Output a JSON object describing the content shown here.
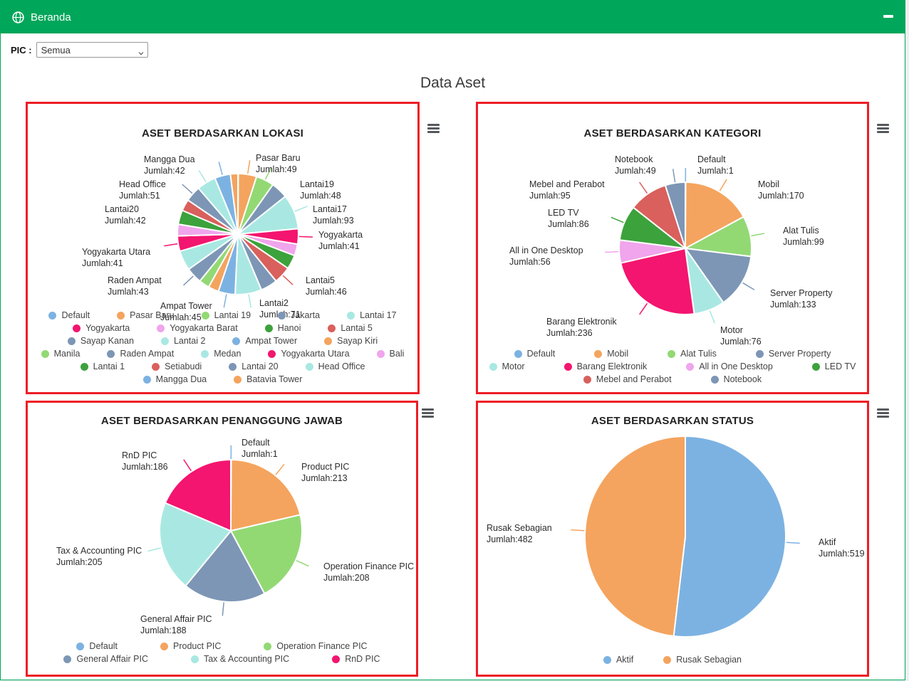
{
  "window": {
    "title": "Beranda"
  },
  "filter": {
    "label": "PIC :",
    "selected": "Semua"
  },
  "page_title": "Data Aset",
  "colors": {
    "header_green": "#00a65a",
    "panel_border_red": "#ee1d25",
    "menu_icon_gray": "#55595e",
    "palette": [
      "#7cb2e2",
      "#f4a45e",
      "#92d974",
      "#7d96b5",
      "#a9e8e2",
      "#f3156f",
      "#f0a5ec",
      "#3ca23c",
      "#d9605c"
    ]
  },
  "chart_data": [
    {
      "type": "pie",
      "title": "ASET BERDASARKAN LOKASI",
      "legend_position": "bottom",
      "series": [
        {
          "label": "Default",
          "value": 1,
          "color": "#7cb2e2"
        },
        {
          "label": "Pasar Baru",
          "value": 49,
          "color": "#f4a45e"
        },
        {
          "label": "Lantai 19",
          "value": 48,
          "color": "#92d974"
        },
        {
          "label": "Jakarta",
          "value": 45,
          "color": "#7d96b5"
        },
        {
          "label": "Lantai 17",
          "value": 93,
          "color": "#a9e8e2"
        },
        {
          "label": "Yogyakarta",
          "value": 41,
          "color": "#f3156f"
        },
        {
          "label": "Yogyakarta Barat",
          "value": 31,
          "color": "#f0a5ec"
        },
        {
          "label": "Hanoi",
          "value": 38,
          "color": "#3ca23c"
        },
        {
          "label": "Lantai 5",
          "value": 46,
          "color": "#d9605c"
        },
        {
          "label": "Sayap Kanan",
          "value": 45,
          "color": "#7d96b5"
        },
        {
          "label": "Lantai 2",
          "value": 71,
          "color": "#a9e8e2"
        },
        {
          "label": "Ampat Tower",
          "value": 45,
          "color": "#7cb2e2"
        },
        {
          "label": "Sayap Kiri",
          "value": 28,
          "color": "#f4a45e"
        },
        {
          "label": "Manila",
          "value": 28,
          "color": "#92d974"
        },
        {
          "label": "Raden Ampat",
          "value": 43,
          "color": "#7d96b5"
        },
        {
          "label": "Medan",
          "value": 53,
          "color": "#a9e8e2"
        },
        {
          "label": "Yogyakarta Utara",
          "value": 41,
          "color": "#f3156f"
        },
        {
          "label": "Bali",
          "value": 31,
          "color": "#f0a5ec"
        },
        {
          "label": "Lantai 1",
          "value": 38,
          "color": "#3ca23c"
        },
        {
          "label": "Setiabudi",
          "value": 31,
          "color": "#d9605c"
        },
        {
          "label": "Lantai 20",
          "value": 42,
          "color": "#7d96b5"
        },
        {
          "label": "Head Office",
          "value": 51,
          "color": "#a9e8e2"
        },
        {
          "label": "Mangga Dua",
          "value": 42,
          "color": "#7cb2e2"
        },
        {
          "label": "Batavia Tower",
          "value": 20,
          "color": "#f4a45e"
        }
      ],
      "callouts": [
        {
          "si": 22,
          "name": "Mangga Dua",
          "jumlah": "Jumlah:42"
        },
        {
          "si": 1,
          "name": "Pasar Baru",
          "jumlah": "Jumlah:49"
        },
        {
          "si": 21,
          "name": "Head Office",
          "jumlah": "Jumlah:51"
        },
        {
          "si": 2,
          "name": "Lantai19",
          "jumlah": "Jumlah:48"
        },
        {
          "si": 20,
          "name": "Lantai20",
          "jumlah": "Jumlah:42"
        },
        {
          "si": 4,
          "name": "Lantai17",
          "jumlah": "Jumlah:93"
        },
        {
          "si": 5,
          "name": "Yogyakarta",
          "jumlah": "Jumlah:41"
        },
        {
          "si": 16,
          "name": "Yogyakarta Utara",
          "jumlah": "Jumlah:41"
        },
        {
          "si": 8,
          "name": "Lantai5",
          "jumlah": "Jumlah:46"
        },
        {
          "si": 14,
          "name": "Raden Ampat",
          "jumlah": "Jumlah:43"
        },
        {
          "si": 11,
          "name": "Ampat Tower",
          "jumlah": "Jumlah:45"
        },
        {
          "si": 10,
          "name": "Lantai2",
          "jumlah": "Jumlah:71"
        }
      ]
    },
    {
      "type": "pie",
      "title": "ASET BERDASARKAN KATEGORI",
      "legend_position": "bottom",
      "series": [
        {
          "label": "Default",
          "value": 1,
          "color": "#7cb2e2"
        },
        {
          "label": "Mobil",
          "value": 170,
          "color": "#f4a45e"
        },
        {
          "label": "Alat Tulis",
          "value": 99,
          "color": "#92d974"
        },
        {
          "label": "Server Property",
          "value": 133,
          "color": "#7d96b5"
        },
        {
          "label": "Motor",
          "value": 76,
          "color": "#a9e8e2"
        },
        {
          "label": "Barang Elektronik",
          "value": 236,
          "color": "#f3156f"
        },
        {
          "label": "All in One Desktop",
          "value": 56,
          "color": "#f0a5ec"
        },
        {
          "label": "LED TV",
          "value": 86,
          "color": "#3ca23c"
        },
        {
          "label": "Mebel and Perabot",
          "value": 95,
          "color": "#d9605c"
        },
        {
          "label": "Notebook",
          "value": 49,
          "color": "#7d96b5"
        }
      ],
      "callouts": [
        {
          "si": 9,
          "name": "Notebook",
          "jumlah": "Jumlah:49"
        },
        {
          "si": 0,
          "name": "Default",
          "jumlah": "Jumlah:1"
        },
        {
          "si": 8,
          "name": "Mebel and Perabot",
          "jumlah": "Jumlah:95"
        },
        {
          "si": 1,
          "name": "Mobil",
          "jumlah": "Jumlah:170"
        },
        {
          "si": 7,
          "name": "LED TV",
          "jumlah": "Jumlah:86"
        },
        {
          "si": 2,
          "name": "Alat Tulis",
          "jumlah": "Jumlah:99"
        },
        {
          "si": 6,
          "name": "All in One Desktop",
          "jumlah": "Jumlah:56"
        },
        {
          "si": 3,
          "name": "Server Property",
          "jumlah": "Jumlah:133"
        },
        {
          "si": 5,
          "name": "Barang Elektronik",
          "jumlah": "Jumlah:236"
        },
        {
          "si": 4,
          "name": "Motor",
          "jumlah": "Jumlah:76"
        }
      ]
    },
    {
      "type": "pie",
      "title": "ASET BERDASARKAN PENANGGUNG JAWAB",
      "legend_position": "bottom",
      "series": [
        {
          "label": "Default",
          "value": 1,
          "color": "#7cb2e2"
        },
        {
          "label": "Product PIC",
          "value": 213,
          "color": "#f4a45e"
        },
        {
          "label": "Operation Finance PIC",
          "value": 208,
          "color": "#92d974"
        },
        {
          "label": "General Affair PIC",
          "value": 188,
          "color": "#7d96b5"
        },
        {
          "label": "Tax & Accounting PIC",
          "value": 205,
          "color": "#a9e8e2"
        },
        {
          "label": "RnD PIC",
          "value": 186,
          "color": "#f3156f"
        }
      ],
      "callouts": [
        {
          "si": 0,
          "name": "Default",
          "jumlah": "Jumlah:1"
        },
        {
          "si": 5,
          "name": "RnD PIC",
          "jumlah": "Jumlah:186"
        },
        {
          "si": 1,
          "name": "Product PIC",
          "jumlah": "Jumlah:213"
        },
        {
          "si": 4,
          "name": "Tax & Accounting PIC",
          "jumlah": "Jumlah:205"
        },
        {
          "si": 2,
          "name": "Operation Finance PIC",
          "jumlah": "Jumlah:208"
        },
        {
          "si": 3,
          "name": "General Affair PIC",
          "jumlah": "Jumlah:188"
        }
      ]
    },
    {
      "type": "pie",
      "title": "ASET BERDASARKAN STATUS",
      "legend_position": "bottom",
      "series": [
        {
          "label": "Aktif",
          "value": 519,
          "color": "#7cb2e2"
        },
        {
          "label": "Rusak Sebagian",
          "value": 482,
          "color": "#f4a45e"
        }
      ],
      "callouts": [
        {
          "si": 1,
          "name": "Rusak Sebagian",
          "jumlah": "Jumlah:482"
        },
        {
          "si": 0,
          "name": "Aktif",
          "jumlah": "Jumlah:519"
        }
      ]
    }
  ]
}
